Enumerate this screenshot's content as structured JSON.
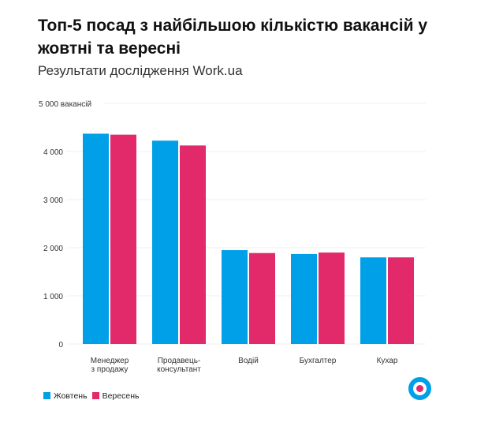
{
  "chart_data": {
    "type": "bar",
    "title": "Топ-5 посад з найбільшою кількістю вакансій у жовтні та вересні",
    "subtitle": "Результати дослідження Work.ua",
    "categories": [
      [
        "Менеджер",
        "з продажу"
      ],
      [
        "Продавець-",
        "консультант"
      ],
      [
        "Водій"
      ],
      [
        "Бухгалтер"
      ],
      [
        "Кухар"
      ]
    ],
    "series": [
      {
        "name": "Жовтень",
        "color": "#00a0e9",
        "values": [
          4370,
          4225,
          1950,
          1870,
          1800
        ]
      },
      {
        "name": "Вересень",
        "color": "#e2296a",
        "values": [
          4350,
          4125,
          1890,
          1900,
          1800
        ]
      }
    ],
    "ylim": [
      0,
      5000
    ],
    "yticks": [
      0,
      1000,
      2000,
      3000,
      4000,
      5000
    ],
    "ytick_labels": [
      "0",
      "1 000",
      "2 000",
      "3 000",
      "4 000",
      "5 000 вакансій"
    ],
    "grid": true,
    "legend": "bottom-left"
  }
}
